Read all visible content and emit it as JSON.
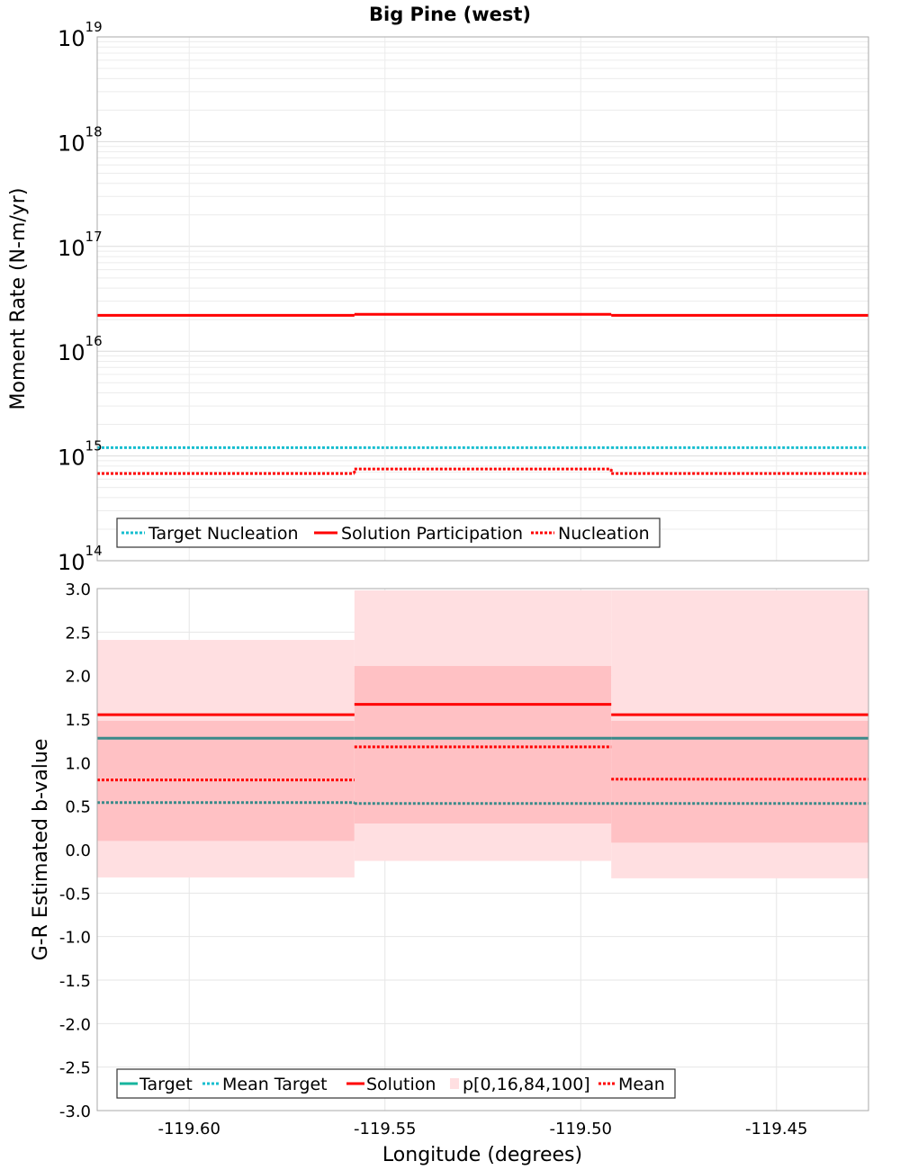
{
  "title": "Big Pine (west)",
  "chart_data": [
    {
      "type": "line",
      "panel": "top",
      "ylabel": "Moment Rate (N-m/yr)",
      "yscale": "log",
      "ylim": [
        100000000000000.0,
        1e+19
      ],
      "xlim": [
        -119.6235,
        -119.4265
      ],
      "ytick_labels": [
        {
          "base": "10",
          "exp": "19",
          "value": 1e+19
        },
        {
          "base": "10",
          "exp": "18",
          "value": 1e+18
        },
        {
          "base": "10",
          "exp": "17",
          "value": 1e+17
        },
        {
          "base": "10",
          "exp": "16",
          "value": 1e+16
        },
        {
          "base": "10",
          "exp": "15",
          "value": 1000000000000000.0
        },
        {
          "base": "10",
          "exp": "14",
          "value": 100000000000000.0
        }
      ],
      "bin_edges": [
        -119.6235,
        -119.5578,
        -119.4922,
        -119.4265
      ],
      "series": [
        {
          "name": "Target Nucleation",
          "style": "dotted",
          "color": "#17becf",
          "values": [
            1200000000000000.0,
            1200000000000000.0,
            1200000000000000.0
          ]
        },
        {
          "name": "Solution Participation",
          "style": "solid",
          "color": "#ff0000",
          "values": [
            2.2e+16,
            2.25e+16,
            2.2e+16
          ]
        },
        {
          "name": "Nucleation",
          "style": "dotted",
          "color": "#ff0000",
          "values": [
            680000000000000.0,
            750000000000000.0,
            680000000000000.0
          ]
        }
      ],
      "legend": "bottom-left"
    },
    {
      "type": "line",
      "panel": "bottom",
      "xlabel": "Longitude (degrees)",
      "ylabel": "G-R Estimated b-value",
      "ylim": [
        -3.0,
        3.0
      ],
      "xlim": [
        -119.6235,
        -119.4265
      ],
      "xticks": [
        {
          "label": "-119.60",
          "value": -119.6
        },
        {
          "label": "-119.55",
          "value": -119.55
        },
        {
          "label": "-119.50",
          "value": -119.5
        },
        {
          "label": "-119.45",
          "value": -119.45
        }
      ],
      "yticks": [
        {
          "label": "3.0",
          "value": 3.0
        },
        {
          "label": "2.5",
          "value": 2.5
        },
        {
          "label": "2.0",
          "value": 2.0
        },
        {
          "label": "1.5",
          "value": 1.5
        },
        {
          "label": "1.0",
          "value": 1.0
        },
        {
          "label": "0.5",
          "value": 0.5
        },
        {
          "label": "0.0",
          "value": 0.0
        },
        {
          "label": "-0.5",
          "value": -0.5
        },
        {
          "label": "-1.0",
          "value": -1.0
        },
        {
          "label": "-1.5",
          "value": -1.5
        },
        {
          "label": "-2.0",
          "value": -2.0
        },
        {
          "label": "-2.5",
          "value": -2.5
        },
        {
          "label": "-3.0",
          "value": -3.0
        }
      ],
      "bin_edges": [
        -119.6235,
        -119.5578,
        -119.4922,
        -119.4265
      ],
      "bands": [
        {
          "name": "p[0,16,84,100]",
          "p0": [
            -0.32,
            -0.13,
            -0.33
          ],
          "p16": [
            0.1,
            0.3,
            0.08
          ],
          "p84": [
            1.48,
            2.11,
            1.48
          ],
          "p100": [
            2.41,
            2.98,
            2.98
          ],
          "outer_color": "#ffdfe1",
          "inner_color": "#ffc1c4"
        }
      ],
      "series": [
        {
          "name": "Target",
          "style": "solid",
          "color": "#3a8a8a",
          "values": [
            1.28,
            1.28,
            1.28
          ]
        },
        {
          "name": "Mean Target",
          "style": "dotted",
          "color": "#3a8a8a",
          "values": [
            0.54,
            0.53,
            0.53
          ]
        },
        {
          "name": "Solution",
          "style": "solid",
          "color": "#ff0000",
          "values": [
            1.55,
            1.67,
            1.55
          ]
        },
        {
          "name": "Mean",
          "style": "dotted",
          "color": "#ff0000",
          "values": [
            0.8,
            1.18,
            0.81
          ]
        }
      ],
      "legend": "bottom-left",
      "legend_colors": {
        "Target": "#17b59e",
        "Mean Target": "#17becf",
        "Solution": "#ff0000",
        "p[0,16,84,100]": "#ffdfe1",
        "Mean": "#ff0000"
      }
    }
  ]
}
